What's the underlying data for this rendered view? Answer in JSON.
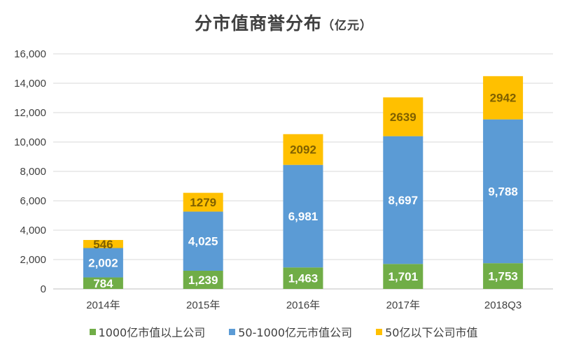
{
  "chart_data": {
    "type": "bar",
    "stacked": true,
    "title": "分市值商誉分布",
    "title_unit": "（亿元）",
    "categories": [
      "2014年",
      "2015年",
      "2016年",
      "2017年",
      "2018Q3"
    ],
    "series": [
      {
        "name": "1000亿市值以上公司",
        "color": "#70AD47",
        "label_color": "#ffffff",
        "values": [
          784,
          1239,
          1463,
          1701,
          1753
        ],
        "labels": [
          "784",
          "1,239",
          "1,463",
          "1,701",
          "1,753"
        ]
      },
      {
        "name": "50-1000亿元市值公司",
        "color": "#5B9BD5",
        "label_color": "#ffffff",
        "values": [
          2002,
          4025,
          6981,
          8697,
          9788
        ],
        "labels": [
          "2,002",
          "4,025",
          "6,981",
          "8,697",
          "9,788"
        ]
      },
      {
        "name": "50亿以下公司市值",
        "color": "#FFC000",
        "label_color": "#7F6000",
        "values": [
          546,
          1279,
          2092,
          2639,
          2942
        ],
        "labels": [
          "546",
          "1279",
          "2092",
          "2639",
          "2942"
        ]
      }
    ],
    "ylim": [
      0,
      16000
    ],
    "yticks": [
      0,
      2000,
      4000,
      6000,
      8000,
      10000,
      12000,
      14000,
      16000
    ],
    "ytick_labels": [
      "0",
      "2,000",
      "4,000",
      "6,000",
      "8,000",
      "10,000",
      "12,000",
      "14,000",
      "16,000"
    ],
    "grid": true,
    "legend_position": "bottom"
  }
}
